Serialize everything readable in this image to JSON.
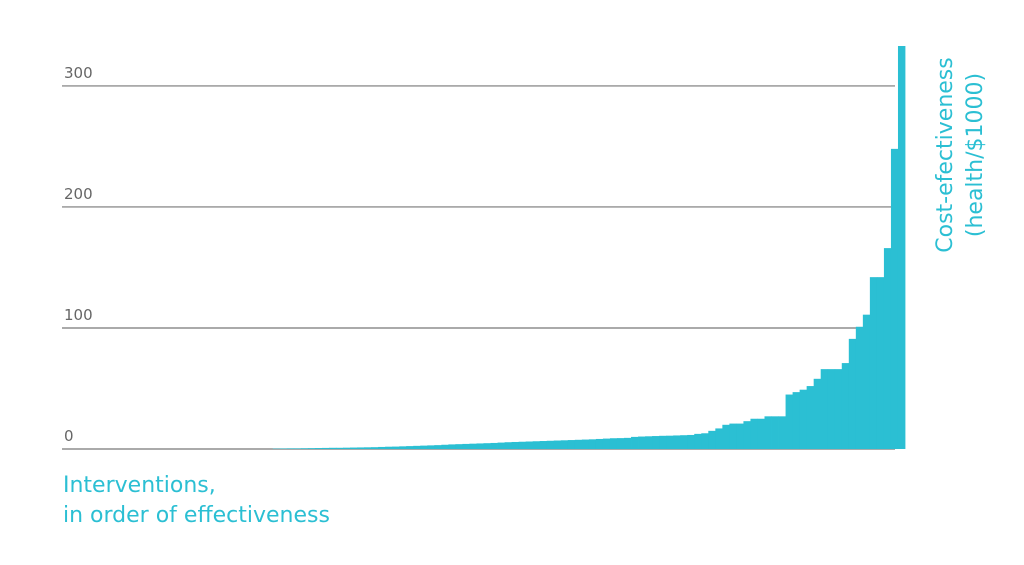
{
  "chart_data": {
    "type": "bar",
    "x_label": [
      "Interventions,",
      "in order of effectiveness"
    ],
    "y_label": [
      "Cost-efectiveness",
      "(health/$1000)"
    ],
    "color": "#2bbfd3",
    "grid": true,
    "ylim": [
      0,
      333
    ],
    "yticks": [
      0,
      100,
      200,
      300
    ],
    "values": [
      0,
      0,
      0,
      0,
      0,
      0,
      0,
      0,
      0,
      0,
      0,
      0,
      0,
      0,
      0,
      0,
      0,
      0,
      0,
      0,
      0,
      0,
      0,
      0,
      0,
      0,
      0,
      0,
      0,
      0,
      0.3,
      0.4,
      0.5,
      0.5,
      0.6,
      0.7,
      0.8,
      0.9,
      1,
      1,
      1.1,
      1.2,
      1.3,
      1.4,
      1.5,
      1.7,
      1.9,
      2,
      2.2,
      2.4,
      2.6,
      2.8,
      3,
      3.2,
      3.5,
      3.8,
      4,
      4.2,
      4.4,
      4.6,
      4.8,
      5,
      5.3,
      5.6,
      5.8,
      6,
      6.2,
      6.4,
      6.6,
      6.8,
      7,
      7.2,
      7.4,
      7.6,
      7.8,
      8,
      8.3,
      8.6,
      8.9,
      9,
      9.2,
      10,
      10.3,
      10.5,
      10.7,
      10.9,
      11,
      11.2,
      11.4,
      11.6,
      12.5,
      13,
      15,
      17,
      20,
      21,
      21,
      23,
      25,
      25,
      27,
      27,
      27,
      45,
      47,
      49,
      52,
      58,
      66,
      66,
      66,
      71,
      91,
      101,
      111,
      142,
      142,
      166,
      248,
      333
    ]
  }
}
